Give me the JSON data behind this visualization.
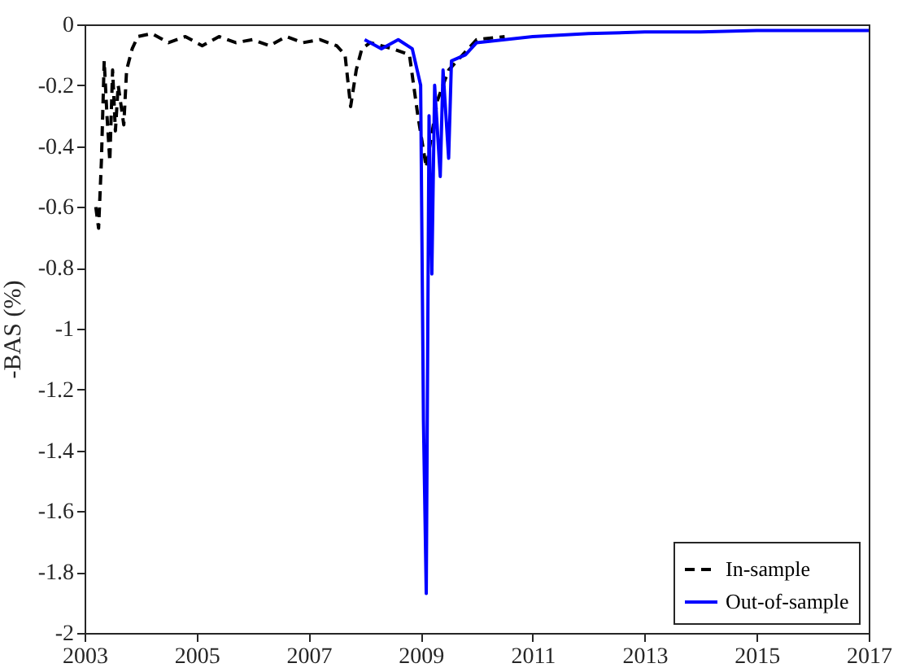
{
  "chart_data": {
    "type": "line",
    "ylabel": "-BAS (%)",
    "xlim": [
      2003,
      2017
    ],
    "xticks": [
      2003,
      2005,
      2007,
      2009,
      2011,
      2013,
      2015,
      2017
    ],
    "ylim": [
      -2,
      0
    ],
    "yticks": [
      -2,
      -1.8,
      -1.6,
      -1.4,
      -1.2,
      -1,
      -0.8,
      -0.6,
      -0.4,
      -0.2,
      0
    ],
    "grid": false,
    "legend": "bottom right",
    "series": [
      {
        "name": "In-sample",
        "color": "#000000",
        "line_style": "dashed",
        "x": [
          2003.2,
          2003.25,
          2003.3,
          2003.35,
          2003.4,
          2003.45,
          2003.5,
          2003.55,
          2003.6,
          2003.7,
          2003.75,
          2003.85,
          2003.95,
          2004.2,
          2004.5,
          2004.8,
          2005.1,
          2005.4,
          2005.7,
          2006.0,
          2006.3,
          2006.6,
          2006.9,
          2007.2,
          2007.5,
          2007.65,
          2007.75,
          2007.85,
          2007.95,
          2008.1,
          2008.5,
          2008.8,
          2008.95,
          2009.1,
          2009.3,
          2009.5,
          2010.0,
          2010.5
        ],
        "values": [
          -0.6,
          -0.67,
          -0.45,
          -0.12,
          -0.3,
          -0.45,
          -0.15,
          -0.35,
          -0.2,
          -0.33,
          -0.15,
          -0.08,
          -0.04,
          -0.03,
          -0.06,
          -0.04,
          -0.07,
          -0.04,
          -0.06,
          -0.05,
          -0.07,
          -0.04,
          -0.06,
          -0.05,
          -0.07,
          -0.1,
          -0.27,
          -0.15,
          -0.08,
          -0.06,
          -0.08,
          -0.1,
          -0.3,
          -0.47,
          -0.25,
          -0.15,
          -0.05,
          -0.04
        ]
      },
      {
        "name": "Out-of-sample",
        "color": "#0000ff",
        "line_style": "solid",
        "x": [
          2008.0,
          2008.3,
          2008.6,
          2008.85,
          2009.0,
          2009.05,
          2009.1,
          2009.15,
          2009.2,
          2009.25,
          2009.35,
          2009.4,
          2009.5,
          2009.55,
          2009.8,
          2010.0,
          2010.5,
          2011.0,
          2012.0,
          2013.0,
          2014.0,
          2015.0,
          2016.0,
          2017.0
        ],
        "values": [
          -0.05,
          -0.08,
          -0.05,
          -0.08,
          -0.2,
          -1.3,
          -1.87,
          -0.3,
          -0.82,
          -0.2,
          -0.5,
          -0.15,
          -0.44,
          -0.12,
          -0.1,
          -0.06,
          -0.05,
          -0.04,
          -0.03,
          -0.025,
          -0.025,
          -0.02,
          -0.02,
          -0.02
        ]
      }
    ]
  }
}
